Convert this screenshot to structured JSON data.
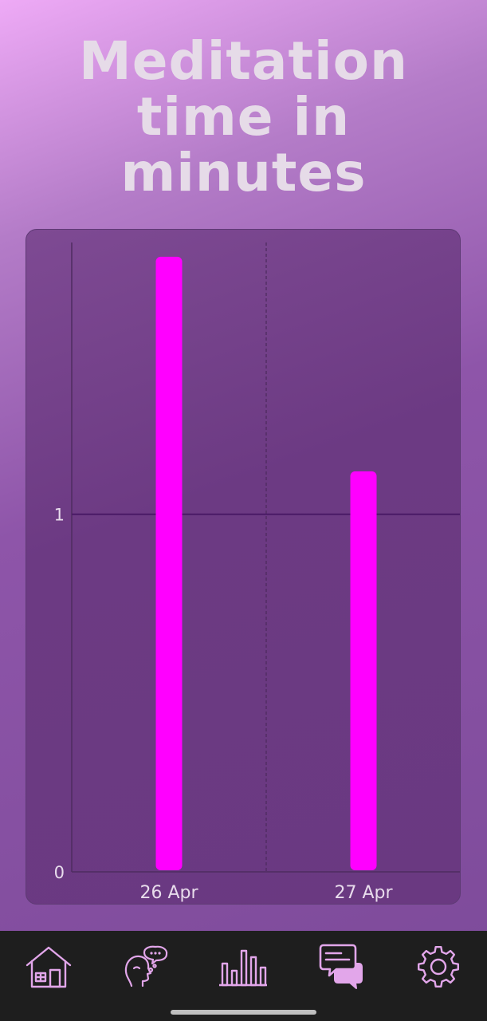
{
  "page": {
    "title_lines": [
      "Meditation",
      "time in",
      "minutes"
    ]
  },
  "chart_data": {
    "type": "bar",
    "title": "Meditation time in minutes",
    "categories": [
      "26 Apr",
      "27 Apr"
    ],
    "values": [
      1.72,
      1.12
    ],
    "y_ticks": [
      0,
      1
    ],
    "ylim": [
      0,
      1.76
    ],
    "grid": true,
    "bar_color": "#ff00ff"
  },
  "nav": {
    "items": [
      {
        "icon": "home-icon"
      },
      {
        "icon": "mind-talk-icon"
      },
      {
        "icon": "bar-chart-icon"
      },
      {
        "icon": "chat-bubbles-icon"
      },
      {
        "icon": "gear-icon"
      }
    ],
    "icon_color": "#e2a6ea"
  }
}
